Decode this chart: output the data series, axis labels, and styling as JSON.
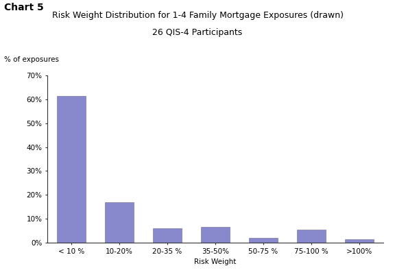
{
  "title_line1": "Risk Weight Distribution for 1-4 Family Mortgage Exposures (drawn)",
  "title_line2": "26 QIS-4 Participants",
  "chart_label": "Chart 5",
  "ylabel": "% of exposures",
  "xlabel": "Risk Weight",
  "categories": [
    "< 10 %",
    "10-20%",
    "20-35 %",
    "35-50%",
    "50-75 %",
    "75-100 %",
    ">100%"
  ],
  "values": [
    61.5,
    17.0,
    6.0,
    6.5,
    2.0,
    5.5,
    1.5
  ],
  "bar_color": "#8888cc",
  "bar_edgecolor": "#7777aa",
  "ylim": [
    0,
    70
  ],
  "yticks": [
    0,
    10,
    20,
    30,
    40,
    50,
    60,
    70
  ],
  "ytick_labels": [
    "0%",
    "10%",
    "20%",
    "30%",
    "40%",
    "50%",
    "60%",
    "70%"
  ],
  "background_color": "#ffffff",
  "title_fontsize": 9,
  "axis_label_fontsize": 7.5,
  "tick_fontsize": 7.5,
  "chart_label_fontsize": 10,
  "ylabel_fontsize": 7.5
}
